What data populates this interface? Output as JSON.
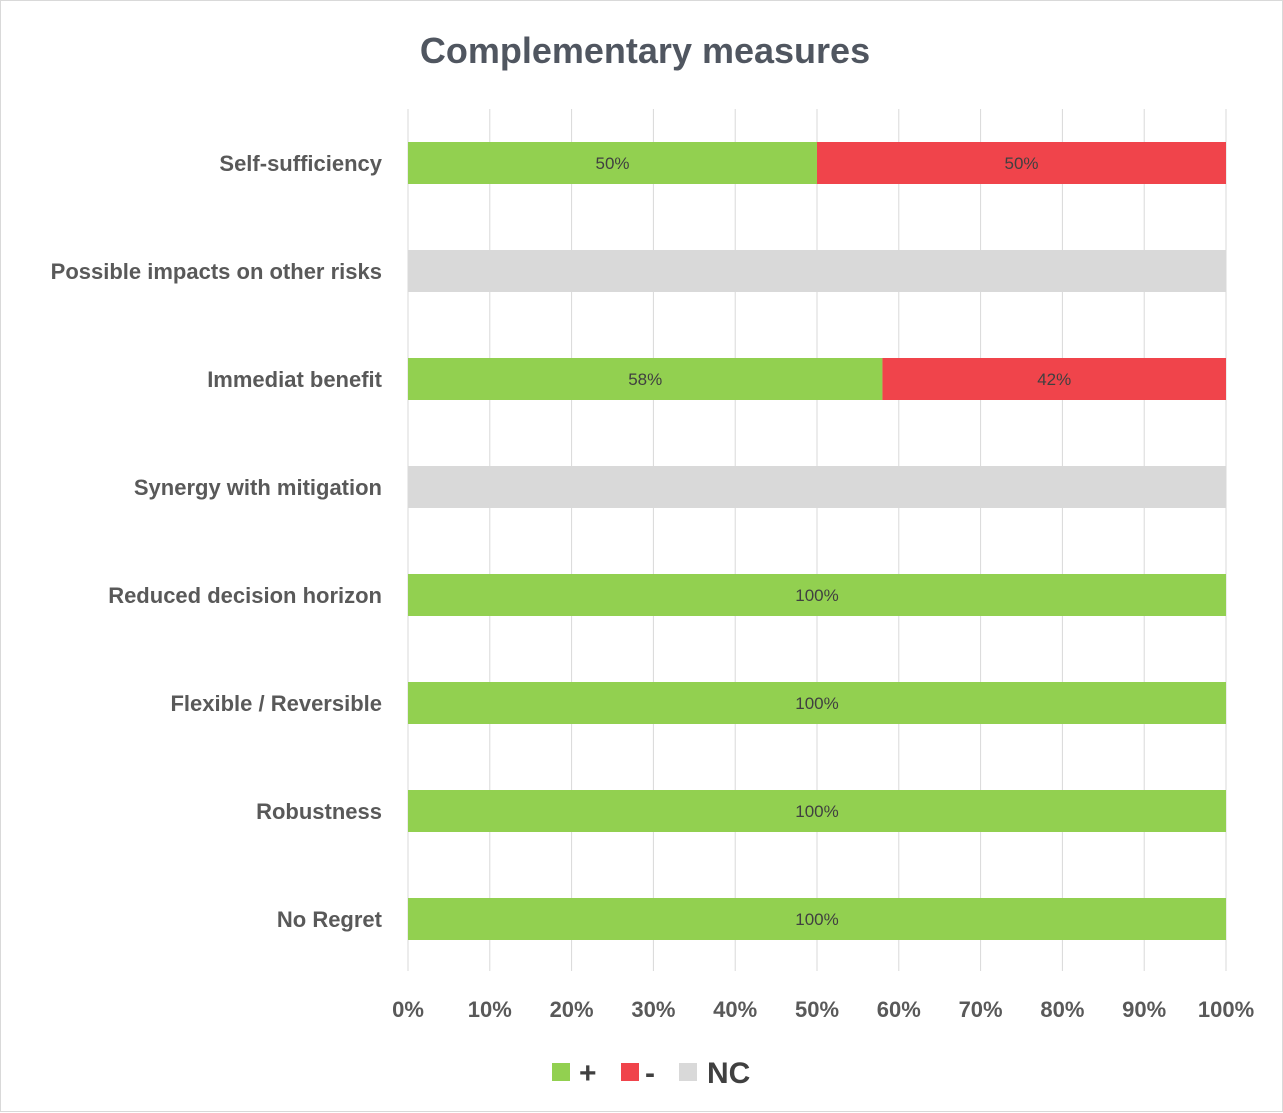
{
  "chart_data": {
    "type": "bar",
    "orientation": "horizontal",
    "stacked": "percent",
    "title": "Complementary measures",
    "categories": [
      "Self-sufficiency",
      "Possible impacts on other risks",
      "Immediat benefit",
      "Synergy with mitigation",
      "Reduced decision horizon",
      "Flexible / Reversible",
      "Robustness",
      "No Regret"
    ],
    "series": [
      {
        "name": "+",
        "color": "#92d050",
        "values": [
          50,
          0,
          58,
          0,
          100,
          100,
          100,
          100
        ],
        "labels": [
          "50%",
          "",
          "58%",
          "",
          "100%",
          "100%",
          "100%",
          "100%"
        ]
      },
      {
        "name": "-",
        "color": "#f0444b",
        "values": [
          50,
          0,
          42,
          0,
          0,
          0,
          0,
          0
        ],
        "labels": [
          "50%",
          "",
          "42%",
          "",
          "",
          "",
          "",
          ""
        ]
      },
      {
        "name": "NC",
        "color": "#d9d9d9",
        "values": [
          0,
          100,
          0,
          100,
          0,
          0,
          0,
          0
        ],
        "labels": [
          "",
          "",
          "",
          "",
          "",
          "",
          "",
          ""
        ]
      }
    ],
    "xlim": [
      0,
      100
    ],
    "xticks": [
      "0%",
      "10%",
      "20%",
      "30%",
      "40%",
      "50%",
      "60%",
      "70%",
      "80%",
      "90%",
      "100%"
    ],
    "grid": true,
    "legend_position": "bottom"
  }
}
